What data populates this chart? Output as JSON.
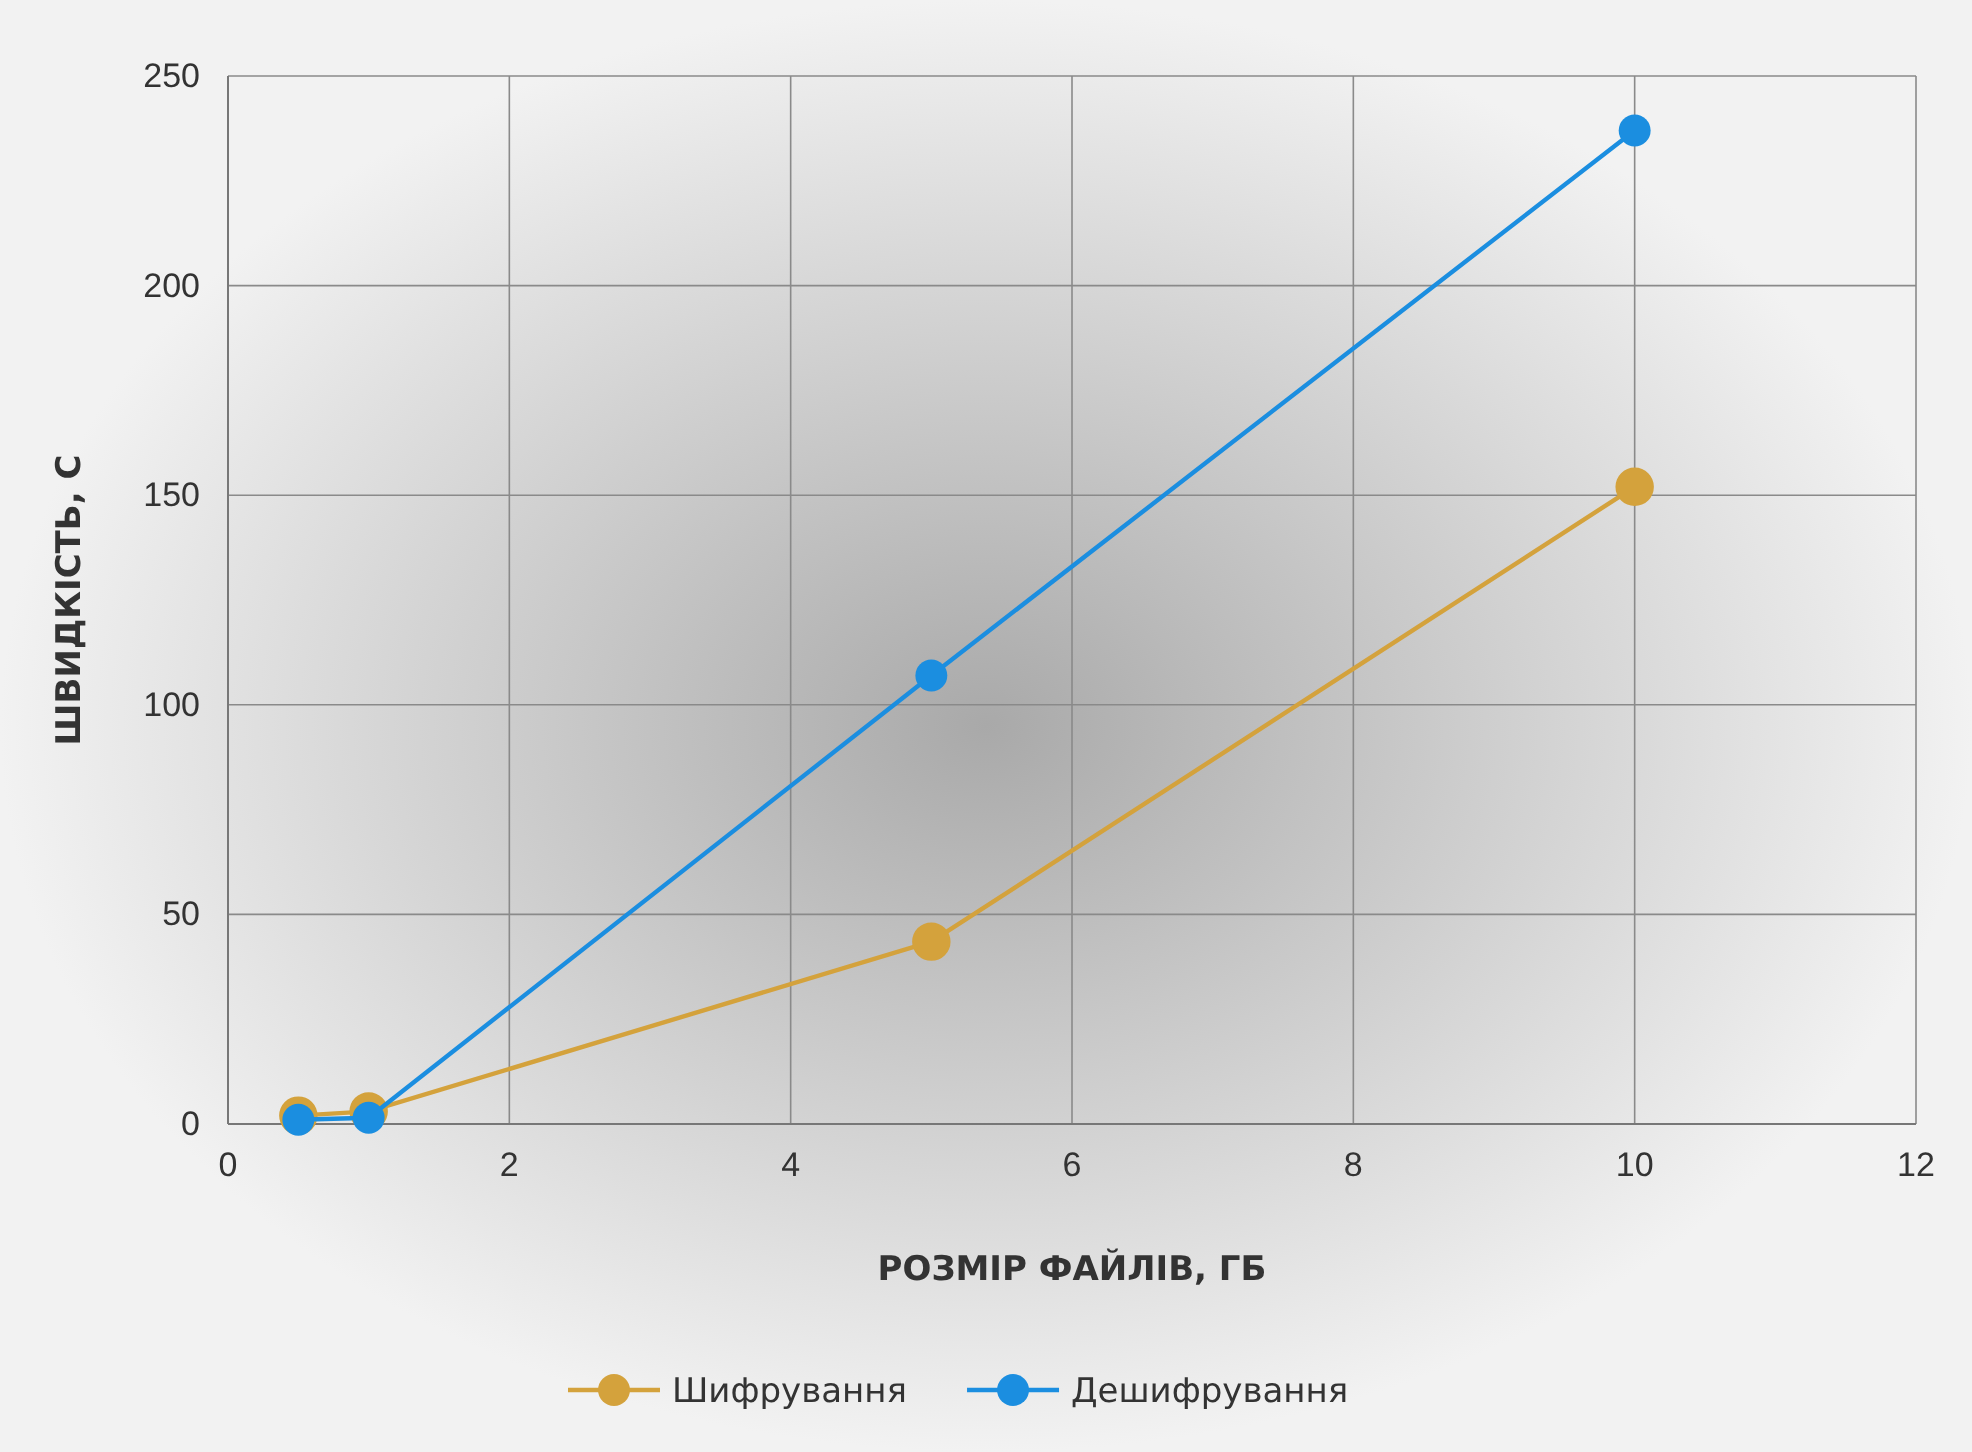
{
  "chart_data": {
    "type": "line",
    "xlabel": "РОЗМІР ФАЙЛІВ, ГБ",
    "ylabel": "ШВИДКІСТЬ, С",
    "x": [
      0.5,
      1,
      5,
      10
    ],
    "series": [
      {
        "name": "Шифрування",
        "color": "#d4a23c",
        "values": [
          2,
          3,
          43.5,
          152
        ]
      },
      {
        "name": "Дешифрування",
        "color": "#1b8ee0",
        "values": [
          1,
          1.5,
          107,
          237
        ]
      }
    ],
    "xlim": [
      0,
      12
    ],
    "xticks": [
      0,
      2,
      4,
      6,
      8,
      10,
      12
    ],
    "ylim": [
      0,
      250
    ],
    "yticks": [
      0,
      50,
      100,
      150,
      200,
      250
    ],
    "grid": true,
    "legend": "bottom",
    "marker": "circle",
    "line_style": "solid"
  }
}
